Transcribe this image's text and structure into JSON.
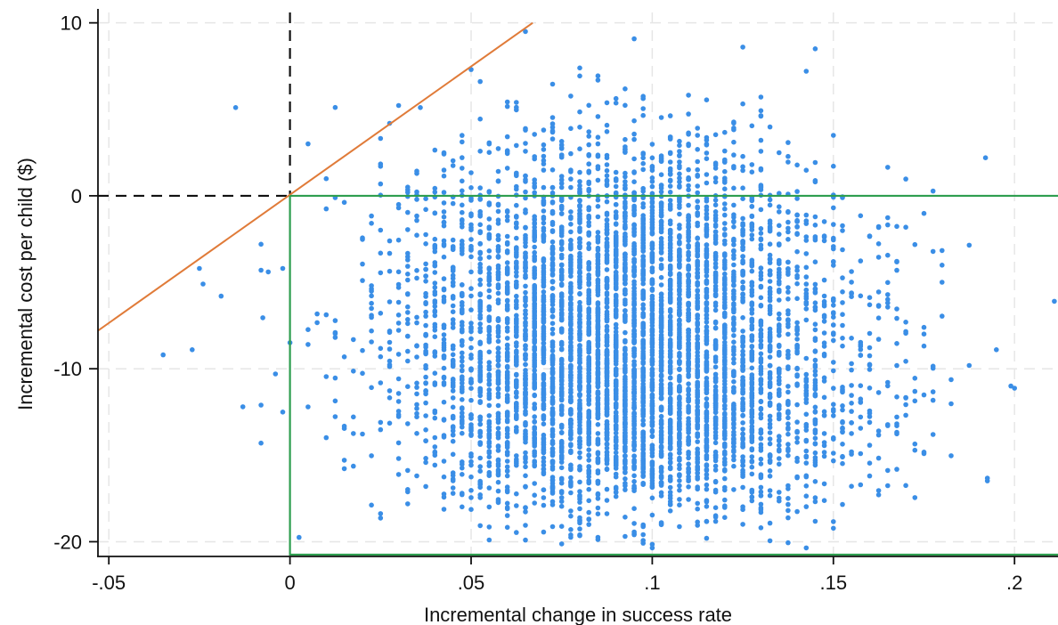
{
  "chart_data": {
    "type": "scatter",
    "title": "",
    "xlabel": "Incremental change in success rate",
    "ylabel": "Incremental cost per child ($)",
    "xlim": [
      -0.053,
      0.212
    ],
    "ylim": [
      -20.8,
      10.6
    ],
    "x_ticks": [
      {
        "value": -0.05,
        "label": "-.05"
      },
      {
        "value": 0,
        "label": "0"
      },
      {
        "value": 0.05,
        "label": ".05"
      },
      {
        "value": 0.1,
        "label": ".1"
      },
      {
        "value": 0.15,
        "label": ".15"
      },
      {
        "value": 0.2,
        "label": ".2"
      }
    ],
    "y_ticks": [
      {
        "value": 10,
        "label": "10"
      },
      {
        "value": 0,
        "label": "0"
      },
      {
        "value": -10,
        "label": "-10"
      },
      {
        "value": -20,
        "label": "-20"
      }
    ],
    "grid": true,
    "legend": "none",
    "point_color": "#3a8ee6",
    "reference_lines": [
      {
        "kind": "vertical-dashed",
        "x": 0,
        "color": "#111111"
      },
      {
        "kind": "horizontal-dashed",
        "y": 0,
        "color": "#111111"
      },
      {
        "kind": "threshold-line",
        "from": [
          -0.053,
          -7.8
        ],
        "to": [
          0.067,
          10.0
        ],
        "color": "#e07b39"
      },
      {
        "kind": "dominance-quadrant",
        "x_min": 0,
        "y_max": 0,
        "y_min": -20.8,
        "color": "#2e9e4f"
      }
    ],
    "series": [
      {
        "cluster_summary": {
          "n_points": 6000,
          "x_mean": 0.093,
          "x_sd": 0.03,
          "y_upper_center": -4.8,
          "y_upper_sd": 4.2,
          "y_lower_center": -12.2,
          "y_lower_sd": 3.2
        },
        "outliers": [
          {
            "x": -0.035,
            "y": -9.2
          },
          {
            "x": -0.027,
            "y": -8.9
          },
          {
            "x": -0.025,
            "y": -4.2
          },
          {
            "x": -0.024,
            "y": -5.1
          },
          {
            "x": -0.019,
            "y": -5.8
          },
          {
            "x": -0.015,
            "y": 5.1
          },
          {
            "x": -0.013,
            "y": -12.2
          },
          {
            "x": -0.008,
            "y": -2.8
          },
          {
            "x": -0.008,
            "y": -4.3
          },
          {
            "x": -0.008,
            "y": -12.1
          },
          {
            "x": -0.008,
            "y": -14.3
          },
          {
            "x": -0.006,
            "y": -4.4
          },
          {
            "x": -0.004,
            "y": -10.3
          },
          {
            "x": -0.002,
            "y": -4.2
          },
          {
            "x": -0.002,
            "y": -12.5
          },
          {
            "x": 0.005,
            "y": 3.0
          },
          {
            "x": 0.036,
            "y": 5.1
          },
          {
            "x": 0.05,
            "y": 7.3
          },
          {
            "x": 0.145,
            "y": 8.5
          },
          {
            "x": 0.192,
            "y": 2.2
          },
          {
            "x": 0.195,
            "y": -8.9
          },
          {
            "x": 0.199,
            "y": -11.0
          },
          {
            "x": 0.211,
            "y": -6.1
          }
        ]
      }
    ]
  }
}
